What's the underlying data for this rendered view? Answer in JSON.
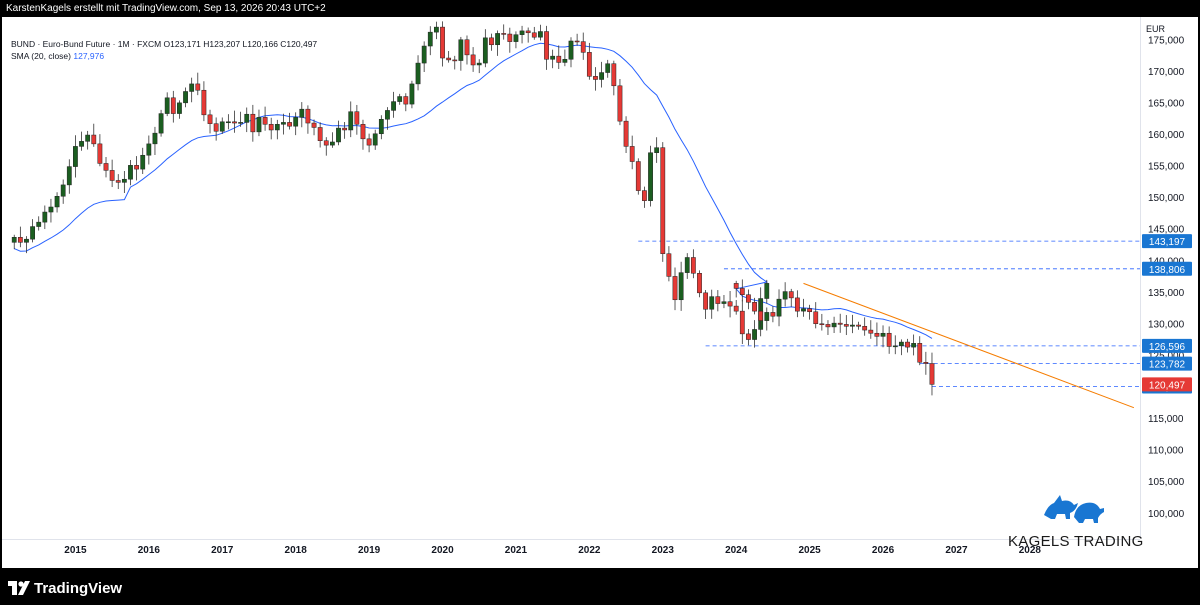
{
  "header": {
    "credit": "KarstenKagels erstellt mit TradingView.com, Sep 13, 2026 20:43 UTC+2"
  },
  "legend": {
    "line1": "BUND · Euro-Bund Future · 1M · FXCM O123,171 H123,207 L120,166 C120,497",
    "sma_label": "SMA (20, close)",
    "sma_value": "127,976"
  },
  "footer": {
    "brand": "TradingView"
  },
  "watermark": {
    "brand": "KAGELS TRADING"
  },
  "colors": {
    "up": "#1b5e20",
    "down": "#e53935",
    "sma": "#2962ff",
    "trendline": "#f57c00",
    "level_line": "#2962ff",
    "level_badge": "#1976d2",
    "price_badge": "#e53935"
  },
  "chart_data": {
    "type": "candlestick",
    "timeframe": "1M",
    "currency": "EUR",
    "x_ticks": [
      "2015",
      "2016",
      "2017",
      "2018",
      "2019",
      "2020",
      "2021",
      "2022",
      "2023",
      "2024",
      "2025",
      "2026",
      "2027",
      "2028"
    ],
    "y_ticks": [
      "100,000",
      "105,000",
      "110,000",
      "115,000",
      "120,000",
      "125,000",
      "130,000",
      "135,000",
      "140,000",
      "145,000",
      "150,000",
      "155,000",
      "160,000",
      "165,000",
      "170,000",
      "175,000"
    ],
    "xlim": [
      "2014-01",
      "2029-07"
    ],
    "ylim": [
      96,
      178.7
    ],
    "grid": false,
    "closes_monthly": [
      {
        "start": "2014-03",
        "values": [
          143.8,
          143.0,
          143.5,
          145.5,
          146.2,
          147.8,
          148.6,
          150.3,
          152.1,
          155.0,
          158.2,
          159.0,
          160.0,
          158.6,
          155.5,
          154.4,
          152.8,
          152.5,
          153.0,
          155.2,
          154.6,
          156.8,
          158.6,
          160.3,
          163.4,
          165.9,
          163.4,
          165.1,
          166.9,
          168.1,
          167.1,
          163.2,
          161.8,
          160.6,
          162.1,
          162.1
        ]
      },
      {
        "start": "2017-03",
        "values": [
          161.9,
          162.0,
          163.3,
          160.5,
          162.8,
          161.7,
          160.8,
          161.7,
          162.0,
          161.4,
          162.8,
          164.1,
          161.9,
          161.2,
          159.1,
          158.4,
          158.9,
          161.1,
          160.8,
          163.7,
          161.7,
          159.4,
          158.4,
          160.2,
          162.5,
          163.9,
          165.3,
          166.1,
          164.9,
          168.1,
          171.4,
          174.1,
          176.3,
          177.1,
          172.2,
          171.9,
          171.8,
          175.1,
          172.7,
          171.1,
          171.4,
          175.4,
          174.3,
          176.1,
          176.0,
          174.8,
          175.9,
          176.5,
          176.2,
          175.5,
          176.4,
          172.0
        ]
      },
      {
        "start": "2021-07",
        "values": [
          172.5,
          171.5,
          172.0,
          174.9,
          174.8,
          173.1,
          169.3,
          168.8,
          169.9,
          171.3,
          167.8,
          162.2,
          158.2,
          155.8,
          151.2,
          149.6,
          157.2,
          158.0,
          141.2,
          137.6,
          133.9,
          138.2,
          140.6,
          138.1,
          135.0,
          132.4,
          134.4,
          133.3,
          133.6,
          132.9,
          132.1,
          128.5,
          127.6,
          129.2,
          134.1,
          136.5
        ]
      },
      {
        "start": "2024-01",
        "values": [
          135.7,
          134.7,
          133.5,
          132.1,
          130.6,
          131.9,
          131.3,
          134.0,
          135.2,
          134.2,
          132.1,
          132.5,
          132.0,
          130.1,
          130.0,
          129.6,
          130.2,
          130.0,
          129.7,
          129.9,
          129.7,
          129.1,
          128.6,
          128.1,
          128.6,
          126.5,
          126.6,
          127.2,
          126.4,
          127.0,
          124.0,
          123.8,
          120.497
        ]
      }
    ],
    "sma": {
      "label": "SMA (20, close)",
      "period": 20,
      "last_value": 127.976
    },
    "price_levels": [
      143.197,
      138.806,
      126.596,
      123.782,
      120.166
    ],
    "last_price": 120.497,
    "trendline": {
      "from": {
        "x": "2024-12",
        "y": 136.5
      },
      "to": {
        "x": "2029-06",
        "y": 116.8
      }
    }
  }
}
